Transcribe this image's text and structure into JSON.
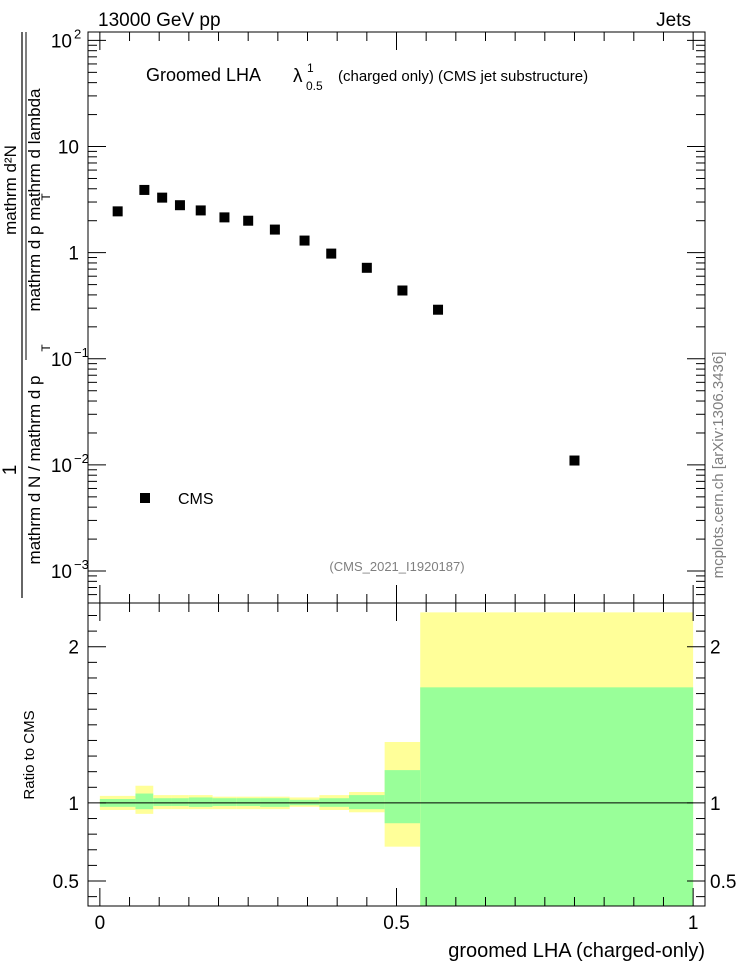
{
  "header": {
    "left": "13000 GeV pp",
    "right": "Jets"
  },
  "side_label": "mcplots.cern.ch [arXiv:1306.3436]",
  "chart_data": [
    {
      "type": "scatter",
      "title": "Groomed LHA",
      "title_symbol": "λ",
      "title_sup": "1",
      "title_sub": "0.5",
      "subtitle": "(charged only) (CMS jet substructure)",
      "analysis_id": "(CMS_2021_I1920187)",
      "ylabel_numerator": "1",
      "ylabel_denominator_top": "mathrm d²N",
      "ylabel_denominator_mid": "mathrm d p  mathrm d lambda",
      "ylabel_denominator_sub": "T",
      "ylabel_left": "mathrm d N / mathrm d p",
      "ylabel_left_sub": "T",
      "yscale": "log",
      "xlim": [
        -0.02,
        1.02
      ],
      "ylim": [
        0.0005,
        120
      ],
      "yticks": [
        {
          "v": 100,
          "base": "10",
          "exp": "2"
        },
        {
          "v": 10,
          "base": "10",
          "exp": ""
        },
        {
          "v": 1,
          "base": "1",
          "exp": ""
        },
        {
          "v": 0.1,
          "base": "10",
          "exp": "−1"
        },
        {
          "v": 0.01,
          "base": "10",
          "exp": "−2"
        },
        {
          "v": 0.001,
          "base": "10",
          "exp": "−3"
        }
      ],
      "legend": [
        {
          "name": "CMS",
          "marker": "square",
          "color": "#000000"
        }
      ],
      "series": [
        {
          "name": "CMS",
          "points": [
            {
              "x": 0.03,
              "y": 2.45
            },
            {
              "x": 0.075,
              "y": 3.9
            },
            {
              "x": 0.105,
              "y": 3.3
            },
            {
              "x": 0.135,
              "y": 2.8
            },
            {
              "x": 0.17,
              "y": 2.5
            },
            {
              "x": 0.21,
              "y": 2.15
            },
            {
              "x": 0.25,
              "y": 2.0
            },
            {
              "x": 0.295,
              "y": 1.65
            },
            {
              "x": 0.345,
              "y": 1.3
            },
            {
              "x": 0.39,
              "y": 0.98
            },
            {
              "x": 0.45,
              "y": 0.72
            },
            {
              "x": 0.51,
              "y": 0.44
            },
            {
              "x": 0.57,
              "y": 0.29
            },
            {
              "x": 0.8,
              "y": 0.011
            }
          ]
        }
      ]
    },
    {
      "type": "area",
      "ylabel": "Ratio to CMS",
      "xlabel": "groomed LHA (charged-only)",
      "xlim": [
        -0.02,
        1.02
      ],
      "ylim": [
        0.34,
        2.28
      ],
      "xticks": [
        {
          "v": 0,
          "label": "0"
        },
        {
          "v": 0.5,
          "label": "0.5"
        },
        {
          "v": 1,
          "label": "1"
        }
      ],
      "yticks": [
        {
          "v": 2,
          "label": "2"
        },
        {
          "v": 1,
          "label": "1"
        },
        {
          "v": 0.5,
          "label": "0.5"
        }
      ],
      "reference_line": 1,
      "colors": {
        "outer_band": "#ffff99",
        "inner_band": "#99ff99",
        "line": "#000000"
      },
      "bands": [
        {
          "x0": 0.0,
          "x1": 0.06,
          "lo": 0.955,
          "hi": 1.045,
          "ilo": 0.975,
          "ihi": 1.025
        },
        {
          "x0": 0.06,
          "x1": 0.09,
          "lo": 0.93,
          "hi": 1.11,
          "ilo": 0.96,
          "ihi": 1.06
        },
        {
          "x0": 0.09,
          "x1": 0.12,
          "lo": 0.96,
          "hi": 1.05,
          "ilo": 0.98,
          "ihi": 1.03
        },
        {
          "x0": 0.12,
          "x1": 0.15,
          "lo": 0.96,
          "hi": 1.05,
          "ilo": 0.98,
          "ihi": 1.03
        },
        {
          "x0": 0.15,
          "x1": 0.19,
          "lo": 0.96,
          "hi": 1.05,
          "ilo": 0.975,
          "ihi": 1.035
        },
        {
          "x0": 0.19,
          "x1": 0.23,
          "lo": 0.96,
          "hi": 1.04,
          "ilo": 0.98,
          "ihi": 1.03
        },
        {
          "x0": 0.23,
          "x1": 0.27,
          "lo": 0.96,
          "hi": 1.04,
          "ilo": 0.98,
          "ihi": 1.03
        },
        {
          "x0": 0.27,
          "x1": 0.32,
          "lo": 0.96,
          "hi": 1.04,
          "ilo": 0.975,
          "ihi": 1.03
        },
        {
          "x0": 0.32,
          "x1": 0.37,
          "lo": 0.975,
          "hi": 1.035,
          "ilo": 0.985,
          "ihi": 1.02
        },
        {
          "x0": 0.37,
          "x1": 0.42,
          "lo": 0.955,
          "hi": 1.05,
          "ilo": 0.975,
          "ihi": 1.03
        },
        {
          "x0": 0.42,
          "x1": 0.48,
          "lo": 0.94,
          "hi": 1.07,
          "ilo": 0.96,
          "ihi": 1.05
        },
        {
          "x0": 0.48,
          "x1": 0.54,
          "lo": 0.72,
          "hi": 1.39,
          "ilo": 0.87,
          "ihi": 1.21
        },
        {
          "x0": 0.54,
          "x1": 1.0,
          "lo": 0.34,
          "hi": 2.22,
          "ilo": 0.34,
          "ihi": 1.74
        }
      ]
    }
  ]
}
